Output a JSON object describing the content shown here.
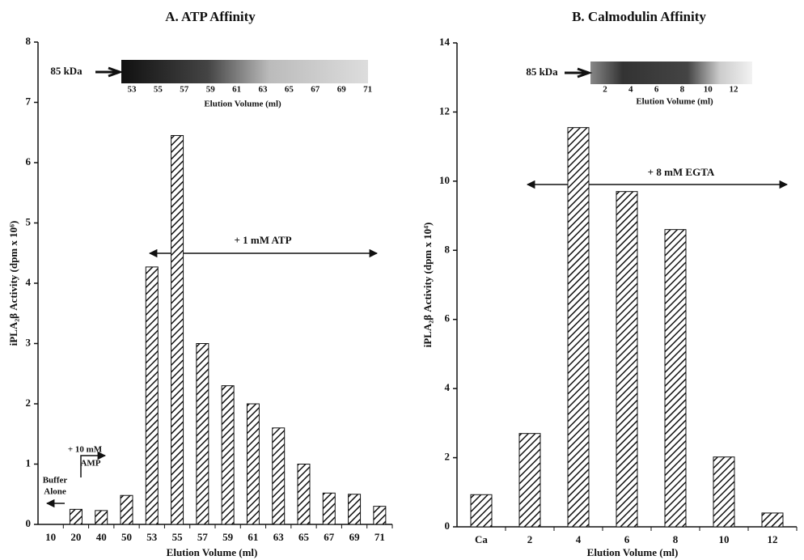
{
  "chart_data": [
    {
      "type": "bar",
      "title": "A. ATP Affinity",
      "x_label": "Elution Volume (ml)",
      "y_label": "iPLA₂β Activity (dpm x 10⁶)",
      "categories": [
        "10",
        "20",
        "40",
        "50",
        "53",
        "55",
        "57",
        "59",
        "61",
        "63",
        "65",
        "67",
        "69",
        "71"
      ],
      "values": [
        0,
        0.25,
        0.23,
        0.48,
        4.27,
        6.45,
        3.0,
        2.3,
        2.0,
        1.6,
        1.0,
        0.52,
        0.5,
        0.3
      ],
      "ylim": [
        0,
        8
      ],
      "yticks": [
        0,
        1,
        2,
        3,
        4,
        5,
        6,
        7,
        8
      ],
      "annotations": [
        "+ 1 mM ATP",
        "+ 10 mM",
        "AMP",
        "Buffer",
        "Alone"
      ],
      "gel": {
        "label": "85 kDa",
        "lanes": [
          "53",
          "55",
          "57",
          "59",
          "61",
          "63",
          "65",
          "67",
          "69",
          "71"
        ],
        "x_label": "Elution Volume (ml)"
      }
    },
    {
      "type": "bar",
      "title": "B.  Calmodulin Affinity",
      "x_label": "Elution Volume (ml)",
      "y_label": "iPLA₂β Activity (dpm x 10⁴)",
      "categories": [
        "Ca",
        "2",
        "4",
        "6",
        "8",
        "10",
        "12"
      ],
      "values": [
        0.93,
        2.7,
        11.55,
        9.7,
        8.6,
        2.02,
        0.4
      ],
      "ylim": [
        0,
        14
      ],
      "yticks": [
        0,
        2,
        4,
        6,
        8,
        10,
        12,
        14
      ],
      "annotations": [
        "+ 8 mM EGTA"
      ],
      "gel": {
        "label": "85 kDa",
        "lanes": [
          "2",
          "4",
          "6",
          "8",
          "10",
          "12"
        ],
        "x_label": "Elution Volume (ml)"
      }
    }
  ]
}
